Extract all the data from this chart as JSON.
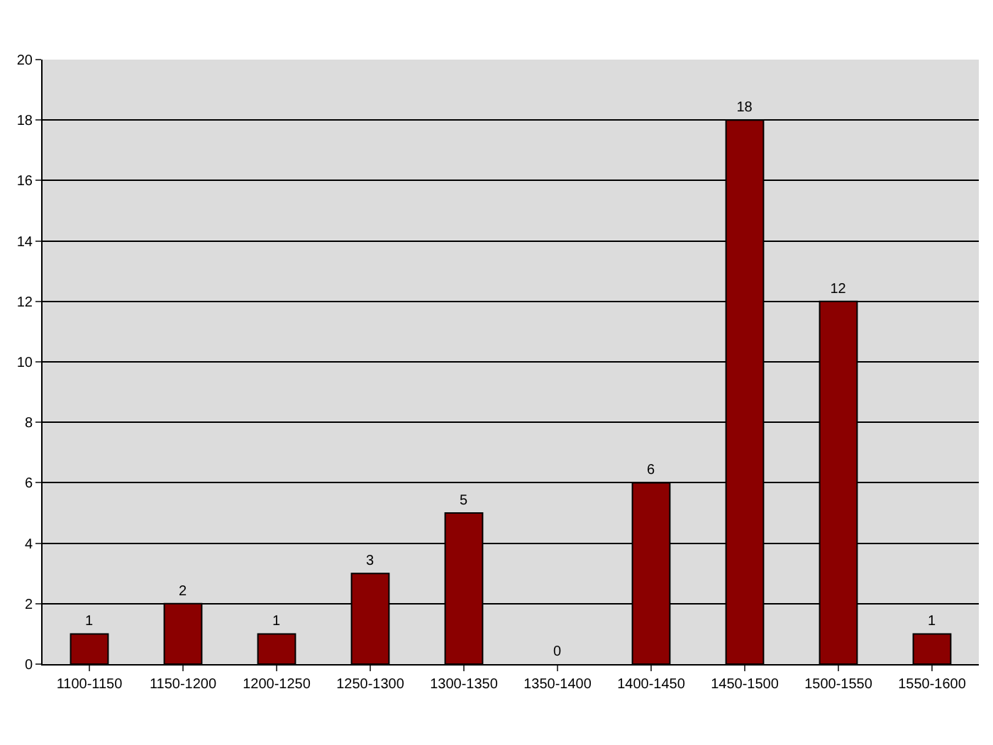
{
  "chart_data": {
    "type": "bar",
    "categories": [
      "1100-1150",
      "1150-1200",
      "1200-1250",
      "1250-1300",
      "1300-1350",
      "1350-1400",
      "1400-1450",
      "1450-1500",
      "1500-1550",
      "1550-1600"
    ],
    "values": [
      1,
      2,
      1,
      3,
      5,
      0,
      6,
      18,
      12,
      1
    ],
    "color": "#8b0000",
    "ylim": [
      0,
      20
    ],
    "yticks": [
      0,
      2,
      4,
      6,
      8,
      10,
      12,
      14,
      16,
      18,
      20
    ],
    "grid": "y",
    "data_labels": true
  }
}
